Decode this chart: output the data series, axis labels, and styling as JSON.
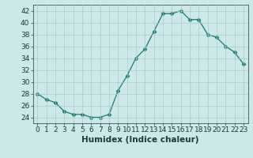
{
  "x": [
    0,
    1,
    2,
    3,
    4,
    5,
    6,
    7,
    8,
    9,
    10,
    11,
    12,
    13,
    14,
    15,
    16,
    17,
    18,
    19,
    20,
    21,
    22,
    23
  ],
  "y": [
    28,
    27,
    26.5,
    25,
    24.5,
    24.5,
    24,
    24,
    24.5,
    28.5,
    31,
    34,
    35.5,
    38.5,
    41.5,
    41.5,
    42,
    40.5,
    40.5,
    38,
    37.5,
    36,
    35,
    33
  ],
  "line_color": "#1a7a6e",
  "marker": "D",
  "marker_size": 2.5,
  "bg_color": "#cce8e8",
  "grid_color": "#aacccc",
  "xlabel": "Humidex (Indice chaleur)",
  "ylim": [
    23,
    43
  ],
  "xlim": [
    -0.5,
    23.5
  ],
  "yticks": [
    24,
    26,
    28,
    30,
    32,
    34,
    36,
    38,
    40,
    42
  ],
  "xticks": [
    0,
    1,
    2,
    3,
    4,
    5,
    6,
    7,
    8,
    9,
    10,
    11,
    12,
    13,
    14,
    15,
    16,
    17,
    18,
    19,
    20,
    21,
    22,
    23
  ],
  "xtick_labels": [
    "0",
    "1",
    "2",
    "3",
    "4",
    "5",
    "6",
    "7",
    "8",
    "9",
    "10",
    "11",
    "12",
    "13",
    "14",
    "15",
    "16",
    "17",
    "18",
    "19",
    "20",
    "21",
    "22",
    "23"
  ],
  "font_color": "#1a3a3a",
  "tick_fontsize": 6.5,
  "xlabel_fontsize": 7.5
}
